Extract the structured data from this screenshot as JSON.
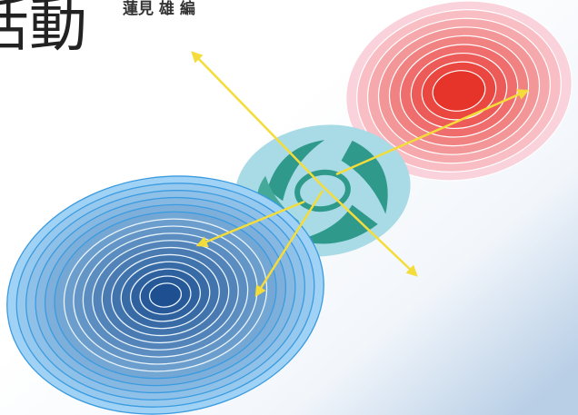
{
  "header": {
    "title": "活動",
    "author": "蓮見 雄 編"
  }
}
